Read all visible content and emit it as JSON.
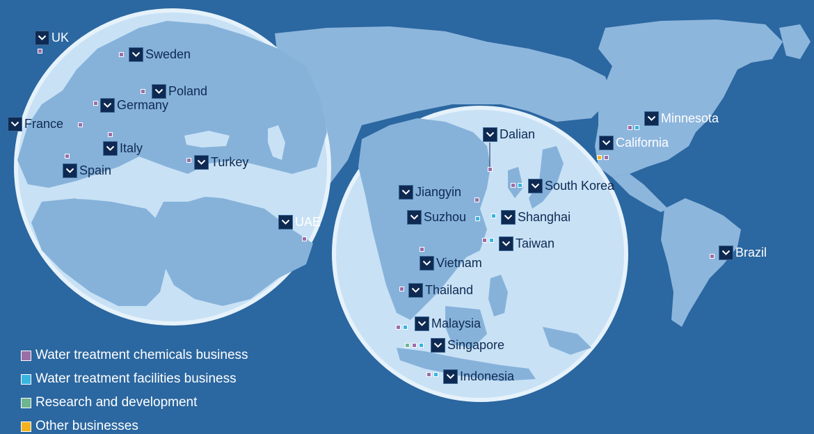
{
  "colors": {
    "ocean": "#2b67a0",
    "land_dark_region": "#8db6dd",
    "globe_fill": "#c8e1f5",
    "globe_land": "#86b2da",
    "marker_bg": "#0e2a52",
    "water_treatment_chemicals": "#9b6fa6",
    "water_treatment_facilities": "#39b5e0",
    "research_and_development": "#6fb58f",
    "other_businesses": "#f3b21e"
  },
  "legend": [
    {
      "label": "Water treatment chemicals business",
      "color": "#9b6fa6"
    },
    {
      "label": "Water treatment facilities business",
      "color": "#39b5e0"
    },
    {
      "label": "Research and development",
      "color": "#6fb58f"
    },
    {
      "label": "Other businesses",
      "color": "#f3b21e"
    }
  ],
  "locations": [
    {
      "name": "UK",
      "businesses": [
        "chem"
      ]
    },
    {
      "name": "Sweden",
      "businesses": [
        "chem"
      ]
    },
    {
      "name": "Poland",
      "businesses": [
        "chem"
      ]
    },
    {
      "name": "Germany",
      "businesses": [
        "chem"
      ]
    },
    {
      "name": "France",
      "businesses": [
        "chem"
      ]
    },
    {
      "name": "Italy",
      "businesses": [
        "chem"
      ]
    },
    {
      "name": "Spain",
      "businesses": [
        "chem"
      ]
    },
    {
      "name": "Turkey",
      "businesses": [
        "chem"
      ]
    },
    {
      "name": "UAE",
      "businesses": [
        "chem"
      ]
    },
    {
      "name": "Dalian",
      "businesses": [
        "chem"
      ]
    },
    {
      "name": "Jiangyin",
      "businesses": [
        "chem"
      ]
    },
    {
      "name": "South Korea",
      "businesses": [
        "chem",
        "fac"
      ]
    },
    {
      "name": "Suzhou",
      "businesses": [
        "fac"
      ]
    },
    {
      "name": "Shanghai",
      "businesses": [
        "fac"
      ]
    },
    {
      "name": "Taiwan",
      "businesses": [
        "chem",
        "fac"
      ]
    },
    {
      "name": "Vietnam",
      "businesses": [
        "chem"
      ]
    },
    {
      "name": "Thailand",
      "businesses": [
        "chem"
      ]
    },
    {
      "name": "Malaysia",
      "businesses": [
        "chem",
        "fac"
      ]
    },
    {
      "name": "Singapore",
      "businesses": [
        "rnd",
        "chem",
        "fac"
      ]
    },
    {
      "name": "Indonesia",
      "businesses": [
        "chem",
        "fac"
      ]
    },
    {
      "name": "Minnesota",
      "businesses": [
        "chem",
        "fac"
      ]
    },
    {
      "name": "California",
      "businesses": [
        "other",
        "chem"
      ]
    },
    {
      "name": "Brazil",
      "businesses": [
        "chem"
      ]
    }
  ]
}
